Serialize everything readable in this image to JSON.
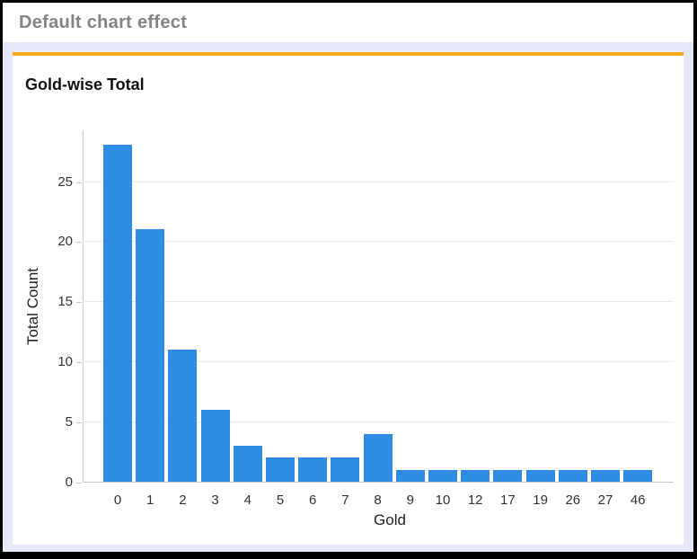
{
  "header": {
    "title": "Default chart effect"
  },
  "colors": {
    "bar": "#2E8CE2",
    "accent_line": "#F7A81B",
    "page_background": "#E4E8F8",
    "header_text": "#848484",
    "axis_line": "#C9C9C9",
    "gridline": "#EAEAEA"
  },
  "chart_data": {
    "type": "bar",
    "title": "Gold-wise Total",
    "xlabel": "Gold",
    "ylabel": "Total Count",
    "categories": [
      "0",
      "1",
      "2",
      "3",
      "4",
      "5",
      "6",
      "7",
      "8",
      "9",
      "10",
      "12",
      "17",
      "19",
      "26",
      "27",
      "46"
    ],
    "values": [
      28,
      21,
      11,
      6,
      3,
      2,
      2,
      2,
      4,
      1,
      1,
      1,
      1,
      1,
      1,
      1,
      1
    ],
    "yticks": [
      0,
      5,
      10,
      15,
      20,
      25
    ],
    "ylim": [
      0,
      29.3
    ],
    "grid": true,
    "legend": false,
    "bar_color": "#2E8CE2"
  }
}
